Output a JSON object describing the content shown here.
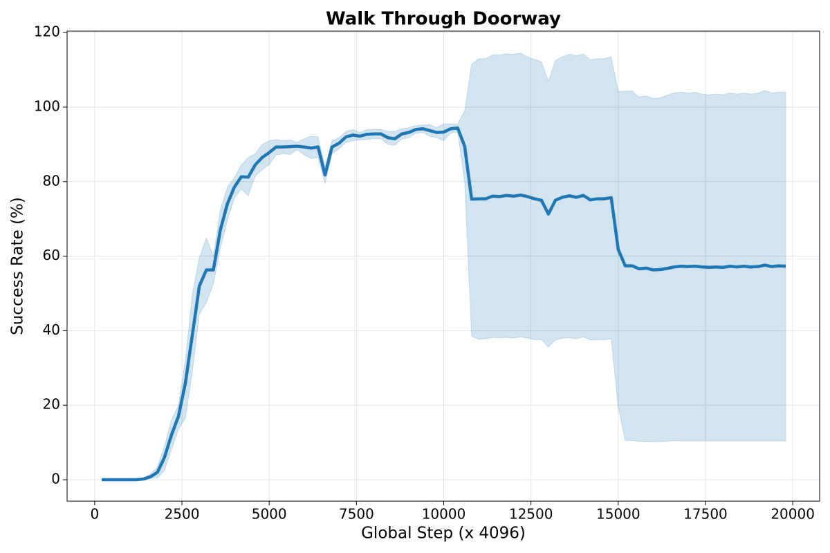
{
  "chart_data": {
    "type": "line",
    "title": "Walk Through Doorway",
    "x_label": "Global Step (x 4096)",
    "y_label": "Success Rate (%)",
    "x": [
      200,
      400,
      600,
      800,
      1000,
      1200,
      1400,
      1600,
      1800,
      2000,
      2200,
      2400,
      2600,
      2800,
      3000,
      3200,
      3400,
      3600,
      3800,
      4000,
      4200,
      4400,
      4600,
      4800,
      5000,
      5200,
      5400,
      5600,
      5800,
      6000,
      6200,
      6400,
      6600,
      6800,
      7000,
      7200,
      7400,
      7600,
      7800,
      8000,
      8200,
      8400,
      8600,
      8800,
      9000,
      9200,
      9400,
      9600,
      9800,
      10000,
      10200,
      10400,
      10600,
      10800,
      11000,
      11200,
      11400,
      11600,
      11800,
      12000,
      12200,
      12400,
      12600,
      12800,
      13000,
      13200,
      13400,
      13600,
      13800,
      14000,
      14200,
      14400,
      14600,
      14800,
      15000,
      15200,
      15400,
      15600,
      15800,
      16000,
      16200,
      16400,
      16600,
      16800,
      17000,
      17200,
      17400,
      17600,
      17800,
      18000,
      18200,
      18400,
      18600,
      18800,
      19000,
      19200,
      19400,
      19600,
      19800
    ],
    "series": [
      {
        "color": "#1f77b4",
        "values": [
          0,
          0,
          0,
          0,
          0,
          0,
          0.2,
          0.8,
          2,
          6,
          12,
          17,
          26,
          39,
          52,
          56.3,
          56.3,
          67,
          74,
          78.5,
          81.3,
          81.2,
          84.5,
          86.5,
          87.8,
          89.3,
          89.3,
          89.4,
          89.5,
          89.3,
          89,
          89.3,
          81.8,
          89.3,
          90.3,
          92,
          92.5,
          92.2,
          92.7,
          92.8,
          92.8,
          91.8,
          91.5,
          92.8,
          93.2,
          94,
          94.2,
          93.7,
          93.2,
          93.3,
          94.2,
          94.4,
          89.5,
          75.3,
          75.4,
          75.4,
          76.1,
          76,
          76.3,
          76.1,
          76.4,
          76,
          75.4,
          75,
          71.3,
          75,
          75.8,
          76.2,
          75.8,
          76.3,
          75.1,
          75.4,
          75.4,
          75.7,
          61.8,
          57.4,
          57.4,
          56.6,
          56.8,
          56.3,
          56.4,
          56.7,
          57.1,
          57.3,
          57.2,
          57.3,
          57.1,
          57,
          57.1,
          57,
          57.3,
          57.1,
          57.3,
          57.1,
          57.2,
          57.6,
          57.2,
          57.4,
          57.3
        ],
        "upper": [
          0,
          0,
          0,
          0,
          0,
          0,
          0.5,
          1.5,
          3.5,
          9,
          16,
          20,
          32,
          50,
          59.5,
          65,
          60,
          72.5,
          78.5,
          81,
          84.5,
          86.5,
          87.5,
          90,
          91,
          91.3,
          91,
          91.2,
          90.5,
          91.5,
          92.2,
          92,
          84,
          91,
          91.8,
          93.5,
          94,
          93.2,
          94,
          94,
          94,
          93.5,
          93.5,
          94.2,
          94.5,
          95,
          95.2,
          95.3,
          94.5,
          95.5,
          95.5,
          95.5,
          99,
          111.5,
          113,
          113,
          114,
          114,
          114.3,
          114.2,
          114.5,
          113.5,
          112.8,
          112.2,
          107,
          112.5,
          113.5,
          114.2,
          113.8,
          114.3,
          112.7,
          113,
          113,
          113.5,
          104.2,
          104.3,
          104.3,
          102.7,
          103,
          102.3,
          102.5,
          103.2,
          103.8,
          104,
          103.8,
          104,
          103.5,
          103.3,
          103.5,
          103.3,
          103.8,
          103.5,
          103.8,
          103.5,
          103.7,
          104.5,
          103.8,
          104,
          104
        ],
        "lower": [
          0,
          0,
          0,
          0,
          0,
          0,
          0,
          0.3,
          0.5,
          2.5,
          8,
          13.5,
          16.5,
          29,
          44.5,
          47.5,
          52.5,
          62,
          69.5,
          75.5,
          78,
          76.2,
          81.5,
          83.2,
          84.6,
          87.2,
          87.5,
          87.3,
          88.6,
          87.2,
          86.2,
          86.5,
          79.5,
          87.5,
          88.8,
          90.5,
          91,
          91.2,
          91.3,
          91.5,
          91.5,
          90,
          89.8,
          91.4,
          91.8,
          93,
          93.2,
          92.2,
          91.8,
          91,
          93,
          93.4,
          80,
          38.5,
          37.7,
          37.8,
          38.2,
          38.1,
          38.2,
          38,
          38.3,
          38,
          37.6,
          37.6,
          35.6,
          37.5,
          38,
          38.1,
          37.8,
          38.3,
          37.5,
          37.6,
          37.6,
          37.8,
          19.4,
          10.5,
          10.5,
          10.3,
          10.3,
          10.2,
          10.2,
          10.3,
          10.5,
          10.4,
          10.4,
          10.4,
          10.4,
          10.4,
          10.4,
          10.4,
          10.4,
          10.4,
          10.4,
          10.4,
          10.4,
          10.4,
          10.4,
          10.4,
          10.4
        ]
      }
    ],
    "xlim": [
      -790,
      20770
    ],
    "ylim": [
      -5.75,
      120.4
    ],
    "xticks": [
      0,
      2500,
      5000,
      7500,
      10000,
      12500,
      15000,
      17500,
      20000
    ],
    "yticks": [
      0,
      20,
      40,
      60,
      80,
      100,
      120
    ],
    "grid": true
  }
}
